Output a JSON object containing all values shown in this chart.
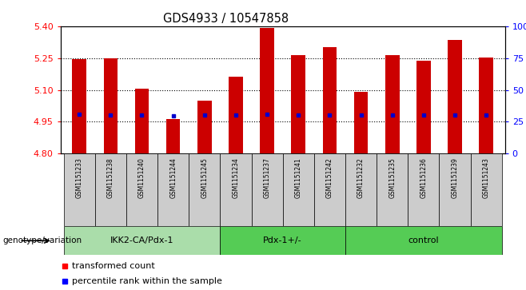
{
  "title": "GDS4933 / 10547858",
  "samples": [
    "GSM1151233",
    "GSM1151238",
    "GSM1151240",
    "GSM1151244",
    "GSM1151245",
    "GSM1151234",
    "GSM1151237",
    "GSM1151241",
    "GSM1151242",
    "GSM1151232",
    "GSM1151235",
    "GSM1151236",
    "GSM1151239",
    "GSM1151243"
  ],
  "bar_values": [
    5.245,
    5.25,
    5.107,
    4.963,
    5.05,
    5.163,
    5.392,
    5.262,
    5.302,
    5.09,
    5.262,
    5.237,
    5.335,
    5.252
  ],
  "bar_bottom": 4.8,
  "percentile_positions": [
    4.984,
    4.982,
    4.982,
    4.979,
    4.981,
    4.982,
    4.984,
    4.983,
    4.983,
    4.983,
    4.983,
    4.983,
    4.983,
    4.983
  ],
  "ylim": [
    4.8,
    5.4
  ],
  "y2lim": [
    0,
    100
  ],
  "yticks": [
    4.8,
    4.95,
    5.1,
    5.25,
    5.4
  ],
  "y2ticks": [
    0,
    25,
    50,
    75,
    100
  ],
  "bar_color": "#cc0000",
  "percentile_color": "#0000cc",
  "group_spans": [
    {
      "start": 0,
      "end": 5,
      "label": "IKK2-CA/Pdx-1",
      "color": "#aaddaa"
    },
    {
      "start": 5,
      "end": 9,
      "label": "Pdx-1+/-",
      "color": "#55cc55"
    },
    {
      "start": 9,
      "end": 14,
      "label": "control",
      "color": "#55cc55"
    }
  ],
  "xtick_bg_color": "#cccccc",
  "xlabel_left": "genotype/variation",
  "legend_red": "transformed count",
  "legend_blue": "percentile rank within the sample"
}
